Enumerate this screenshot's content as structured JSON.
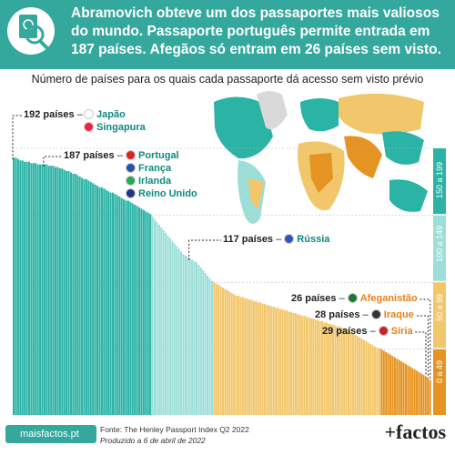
{
  "header": {
    "title_lines": [
      "Abramovich obteve um dos passaportes mais valiosos",
      "do mundo. Passaporte português permite entrada em",
      "187 países. Afegãos só entram em 26 países sem visto."
    ],
    "icon": "passport-magnifier-icon"
  },
  "chart_data": {
    "type": "bar",
    "title": "Número de países para os quais cada passaporte dá acesso sem visto prévio",
    "ylim": [
      0,
      199
    ],
    "bands": [
      {
        "label": "150 a 199",
        "min": 150,
        "max": 199,
        "color": "#2bb3a6"
      },
      {
        "label": "100 a 149",
        "min": 100,
        "max": 149,
        "color": "#9ddfd8"
      },
      {
        "label": "50 a 99",
        "min": 50,
        "max": 99,
        "color": "#f2c66b"
      },
      {
        "label": "0 a 49",
        "min": 0,
        "max": 49,
        "color": "#e59322"
      }
    ],
    "annotations": [
      {
        "value": 192,
        "value_label": "192 países",
        "countries": [
          "Japão",
          "Singapura"
        ]
      },
      {
        "value": 187,
        "value_label": "187 países",
        "countries": [
          "Portugal",
          "França",
          "Irlanda",
          "Reino Unido"
        ]
      },
      {
        "value": 117,
        "value_label": "117 países",
        "countries": [
          "Rússia"
        ]
      },
      {
        "value": 26,
        "value_label": "26 países",
        "countries": [
          "Afeganistão"
        ]
      },
      {
        "value": 28,
        "value_label": "28 países",
        "countries": [
          "Iraque"
        ]
      },
      {
        "value": 29,
        "value_label": "29 países",
        "countries": [
          "Síria"
        ]
      }
    ],
    "values": [
      192,
      192,
      191,
      190,
      190,
      189,
      189,
      189,
      188,
      188,
      188,
      187,
      187,
      187,
      187,
      187,
      186,
      186,
      186,
      185,
      185,
      184,
      184,
      183,
      182,
      182,
      181,
      180,
      180,
      179,
      178,
      177,
      176,
      176,
      175,
      174,
      173,
      172,
      171,
      170,
      170,
      169,
      168,
      167,
      166,
      166,
      165,
      164,
      163,
      162,
      161,
      160,
      160,
      159,
      158,
      157,
      156,
      155,
      154,
      153,
      152,
      151,
      150,
      148,
      146,
      144,
      142,
      140,
      138,
      136,
      134,
      132,
      130,
      128,
      126,
      124,
      122,
      120,
      119,
      118,
      117,
      116,
      115,
      114,
      112,
      110,
      108,
      106,
      104,
      102,
      100,
      99,
      98,
      97,
      96,
      95,
      94,
      93,
      92,
      91,
      90,
      89,
      89,
      88,
      88,
      87,
      87,
      86,
      86,
      85,
      85,
      84,
      84,
      83,
      83,
      82,
      82,
      81,
      81,
      80,
      80,
      79,
      79,
      78,
      78,
      77,
      77,
      76,
      76,
      75,
      75,
      74,
      74,
      73,
      73,
      72,
      72,
      71,
      71,
      70,
      70,
      69,
      69,
      68,
      68,
      67,
      67,
      66,
      66,
      65,
      65,
      64,
      63,
      62,
      61,
      60,
      59,
      58,
      57,
      56,
      55,
      54,
      53,
      52,
      51,
      50,
      50,
      49,
      48,
      47,
      46,
      45,
      44,
      43,
      42,
      41,
      40,
      39,
      38,
      37,
      36,
      35,
      34,
      33,
      32,
      31,
      30,
      29,
      28,
      26
    ]
  },
  "footer": {
    "url": "maisfactos.pt",
    "source": "Fonte: The Henley Passport Index Q2 2022",
    "date": "Produzido a 6 de abril de 2022",
    "brand": "+factos"
  }
}
